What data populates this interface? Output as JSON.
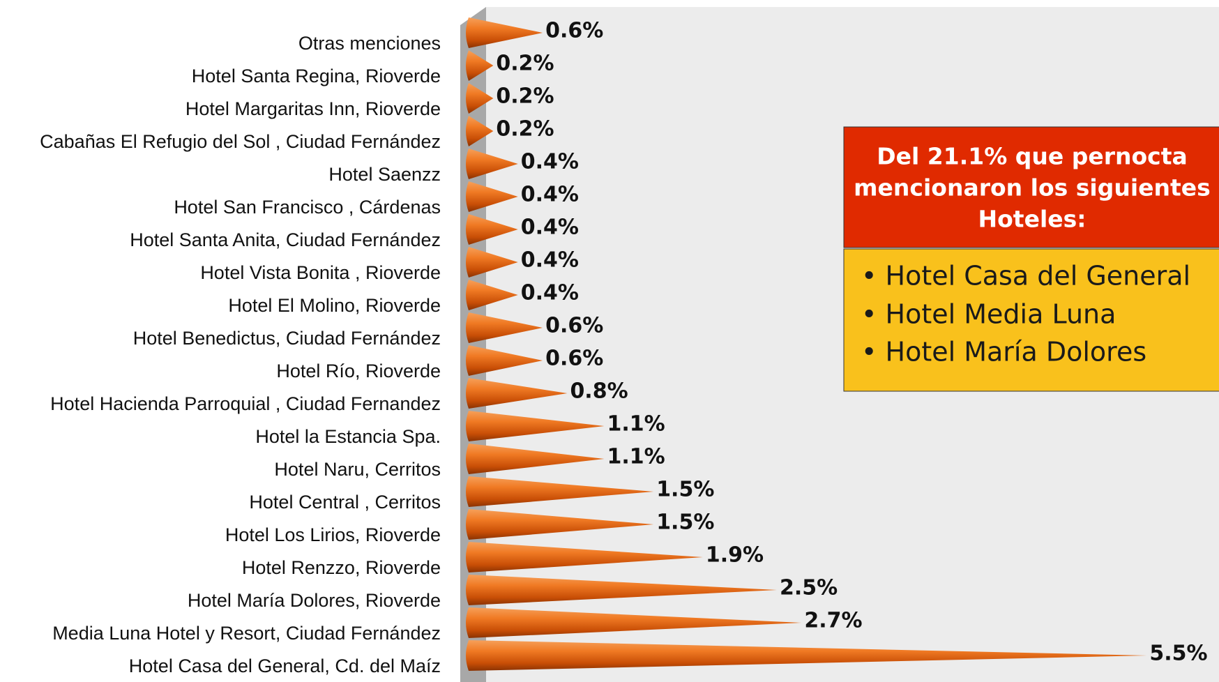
{
  "chart_data": {
    "type": "cone-bar",
    "categories": [
      "Otras menciones",
      "Hotel Santa Regina, Rioverde",
      "Hotel Margaritas Inn, Rioverde",
      "Cabañas El Refugio del Sol , Ciudad Fernández",
      "Hotel Saenzz",
      "Hotel San Francisco  , Cárdenas",
      "Hotel Santa Anita, Ciudad Fernández",
      "Hotel Vista Bonita , Rioverde",
      "Hotel El Molino, Rioverde",
      "Hotel Benedictus, Ciudad Fernández",
      "Hotel Río, Rioverde",
      "Hotel Hacienda  Parroquial , Ciudad  Fernandez",
      "Hotel la Estancia  Spa.",
      "Hotel Naru, Cerritos",
      "Hotel Central , Cerritos",
      "Hotel Los Lirios, Rioverde",
      "Hotel Renzzo, Rioverde",
      "Hotel María Dolores, Rioverde",
      "Media Luna Hotel y Resort, Ciudad Fernández",
      "Hotel Casa del General, Cd. del Maíz"
    ],
    "values": [
      0.6,
      0.2,
      0.2,
      0.2,
      0.4,
      0.4,
      0.4,
      0.4,
      0.4,
      0.6,
      0.6,
      0.8,
      1.1,
      1.1,
      1.5,
      1.5,
      1.9,
      2.5,
      2.7,
      5.5
    ],
    "value_labels": [
      "0.6%",
      "0.2%",
      "0.2%",
      "0.2%",
      "0.4%",
      "0.4%",
      "0.4%",
      "0.4%",
      "0.4%",
      "0.6%",
      "0.6%",
      "0.8%",
      "1.1%",
      "1.1%",
      "1.5%",
      "1.5%",
      "1.9%",
      "2.5%",
      "2.7%",
      "5.5%"
    ],
    "color": "#e8650f",
    "callout": {
      "title": [
        "Del 21.1% que pernocta",
        "mencionaron los siguientes",
        "Hoteles:"
      ],
      "items": [
        "• Hotel Casa del General",
        "• Hotel Media Luna",
        "• Hotel María Dolores"
      ]
    }
  }
}
